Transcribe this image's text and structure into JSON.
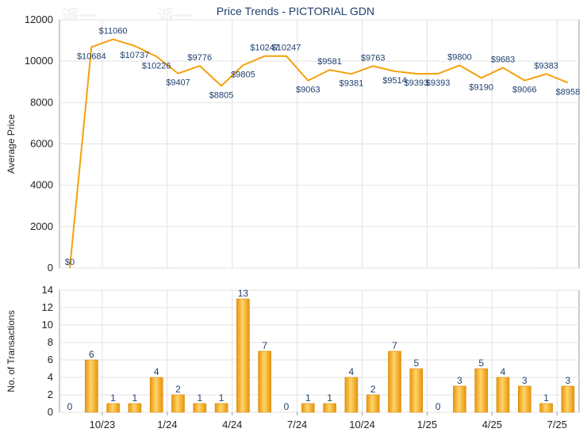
{
  "chart_data": [
    {
      "type": "line",
      "title": "Price Trends - PICTORIAL GDN",
      "ylabel": "Average Price",
      "ylim": [
        0,
        12000
      ],
      "yticks": [
        0,
        2000,
        4000,
        6000,
        8000,
        10000,
        12000
      ],
      "grid": true,
      "line_color": "#f5a10c",
      "x": [
        0,
        1,
        2,
        3,
        4,
        5,
        6,
        7,
        8,
        9,
        10,
        11,
        12,
        13,
        14,
        15,
        16,
        17,
        18,
        19,
        20,
        21,
        22,
        23,
        24
      ],
      "values": [
        0,
        10684,
        11060,
        10737,
        10226,
        9407,
        9776,
        8805,
        9805,
        10247,
        10247,
        9063,
        9581,
        9381,
        9763,
        9514,
        9393,
        9393,
        9800,
        9190,
        9683,
        9066,
        9383,
        8958,
        null
      ],
      "data_labels": [
        "$0",
        "$10684",
        "$11060",
        "$10737",
        "$10226",
        "$9407",
        "$9776",
        "$8805",
        "$9805",
        "$10247",
        "$10247",
        "$9063",
        "$9581",
        "$9381",
        "$9763",
        "$9514",
        "$9393",
        "$9393",
        "$9800",
        "$9190",
        "$9683",
        "$9066",
        "$9383",
        "$8958",
        ""
      ]
    },
    {
      "type": "bar",
      "ylabel": "No. of Transactions",
      "ylim": [
        0,
        14
      ],
      "yticks": [
        0,
        2,
        4,
        6,
        8,
        10,
        12,
        14
      ],
      "grid": true,
      "bar_color": "#f5a60f",
      "x": [
        0,
        1,
        2,
        3,
        4,
        5,
        6,
        7,
        8,
        9,
        10,
        11,
        12,
        13,
        14,
        15,
        16,
        17,
        18,
        19,
        20,
        21,
        22,
        23
      ],
      "values": [
        0,
        6,
        1,
        1,
        4,
        2,
        1,
        1,
        13,
        7,
        0,
        1,
        1,
        4,
        2,
        7,
        5,
        0,
        3,
        5,
        4,
        3,
        1,
        3
      ],
      "xtick_labels": [
        {
          "label": "10/23",
          "x": 1.5
        },
        {
          "label": "1/24",
          "x": 4.5
        },
        {
          "label": "4/24",
          "x": 7.5
        },
        {
          "label": "7/24",
          "x": 10.5
        },
        {
          "label": "10/24",
          "x": 13.5
        },
        {
          "label": "1/25",
          "x": 16.5
        },
        {
          "label": "4/25",
          "x": 19.5
        },
        {
          "label": "7/25",
          "x": 22.5
        }
      ]
    }
  ],
  "watermark": "派一"
}
